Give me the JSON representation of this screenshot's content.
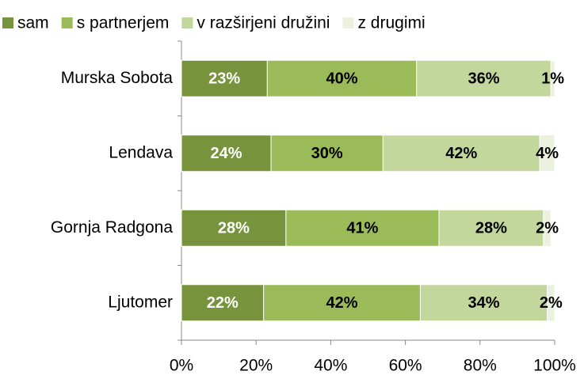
{
  "chart_data": {
    "type": "bar",
    "orientation": "horizontal",
    "stacked": true,
    "categories": [
      "Murska Sobota",
      "Lendava",
      "Gornja Radgona",
      "Ljutomer"
    ],
    "series": [
      {
        "name": "sam",
        "color": "#77933c",
        "values": [
          23,
          24,
          28,
          22
        ],
        "value_labels": [
          "23%",
          "24%",
          "28%",
          "22%"
        ]
      },
      {
        "name": "s partnerjem",
        "color": "#9bbb59",
        "values": [
          40,
          30,
          41,
          42
        ],
        "value_labels": [
          "40%",
          "30%",
          "41%",
          "42%"
        ]
      },
      {
        "name": "v razširjeni družini",
        "color": "#c3d69b",
        "values": [
          36,
          42,
          28,
          34
        ],
        "value_labels": [
          "36%",
          "42%",
          "28%",
          "34%"
        ]
      },
      {
        "name": "z drugimi",
        "color": "#ebf1de",
        "values": [
          1,
          4,
          2,
          2
        ],
        "value_labels": [
          "1%",
          "4%",
          "2%",
          "2%"
        ]
      }
    ],
    "xlim": [
      0,
      100
    ],
    "xticks": [
      {
        "value": 0,
        "label": "0%"
      },
      {
        "value": 20,
        "label": "20%"
      },
      {
        "value": 40,
        "label": "40%"
      },
      {
        "value": 60,
        "label": "60%"
      },
      {
        "value": 80,
        "label": "80%"
      },
      {
        "value": 100,
        "label": "100%"
      }
    ],
    "legend": "top"
  }
}
